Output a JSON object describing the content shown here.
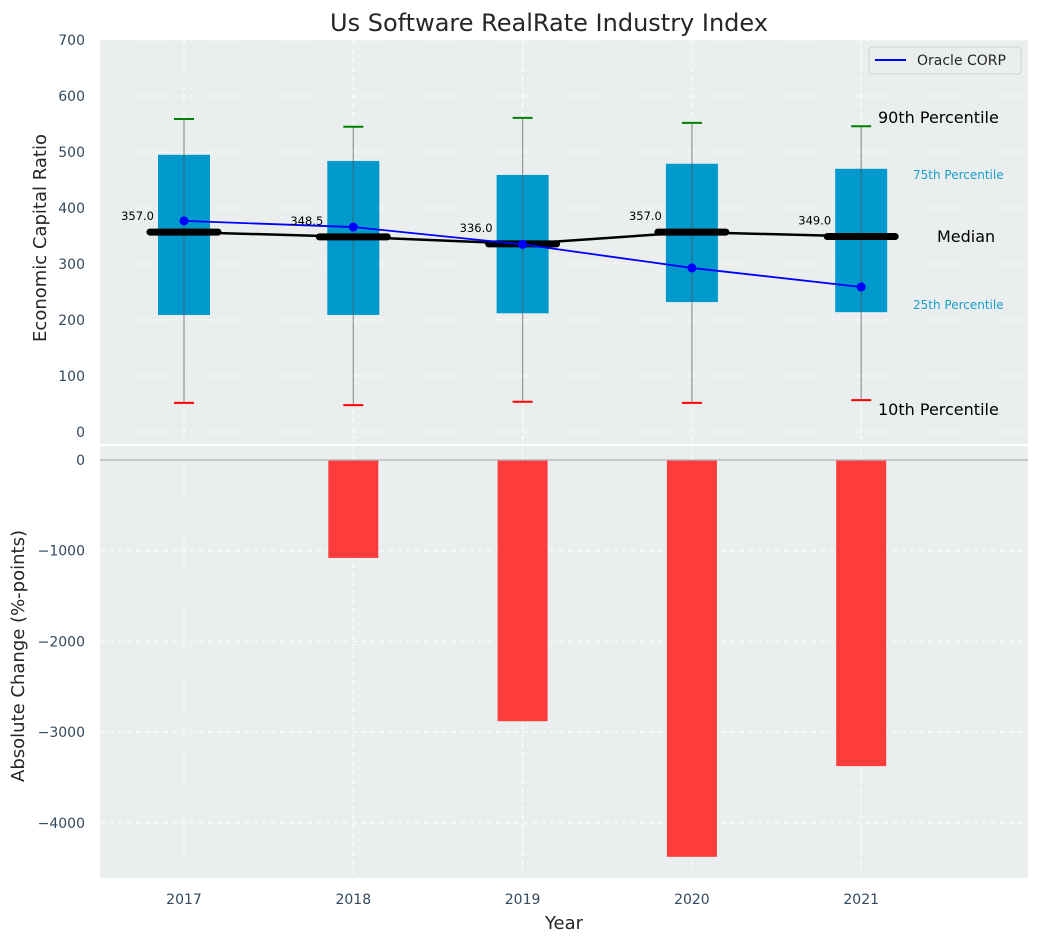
{
  "chart_data": [
    {
      "type": "bar",
      "subtype": "percentile-box",
      "title": "Us Software RealRate Industry Index",
      "xlabel": "",
      "ylabel": "Economic Capital Ratio",
      "ylim": [
        0,
        700
      ],
      "yticks": [
        0,
        100,
        200,
        300,
        400,
        500,
        600,
        700
      ],
      "grid": true,
      "categories": [
        "2017",
        "2018",
        "2019",
        "2020",
        "2021"
      ],
      "p90": [
        559,
        545,
        561,
        552,
        546
      ],
      "p75": [
        495,
        484,
        459,
        479,
        470
      ],
      "median": [
        357.0,
        348.5,
        336.0,
        357.0,
        349.0
      ],
      "median_labels": [
        "357.0",
        "348.5",
        "336.0",
        "357.0",
        "349.0"
      ],
      "p25": [
        209,
        209,
        212,
        232,
        214
      ],
      "p10": [
        52,
        48,
        54,
        52,
        57
      ],
      "series": [
        {
          "name": "Oracle CORP",
          "values": [
            377,
            366,
            335,
            293,
            259
          ],
          "color": "#0000ff"
        }
      ],
      "legend": {
        "placement": "top-right",
        "entries": [
          "Oracle CORP"
        ]
      },
      "annotations": {
        "p90": "90th Percentile",
        "p75": "75th Percentile",
        "median": "Median",
        "p25": "25th Percentile",
        "p10": "10th Percentile"
      },
      "colors": {
        "box": "#0099cc",
        "median": "#000000",
        "p90_cap": "#008000",
        "p10_cap": "#ff0000",
        "percentile_text": "#1a9fc9",
        "background": "#eaeeef"
      }
    },
    {
      "type": "bar",
      "title": "",
      "xlabel": "Year",
      "ylabel": "Absolute Change (%-points)",
      "ylim": [
        -4600,
        0
      ],
      "yticks": [
        0,
        -1000,
        -2000,
        -3000,
        -4000
      ],
      "ytick_labels": [
        "0",
        "−1000",
        "−2000",
        "−3000",
        "−4000"
      ],
      "grid": true,
      "categories": [
        "2017",
        "2018",
        "2019",
        "2020",
        "2021"
      ],
      "values": [
        0,
        -1080,
        -2880,
        -4375,
        -3375
      ],
      "colors": {
        "bar": "#ff3c3c",
        "background": "#eaeeef"
      }
    }
  ]
}
